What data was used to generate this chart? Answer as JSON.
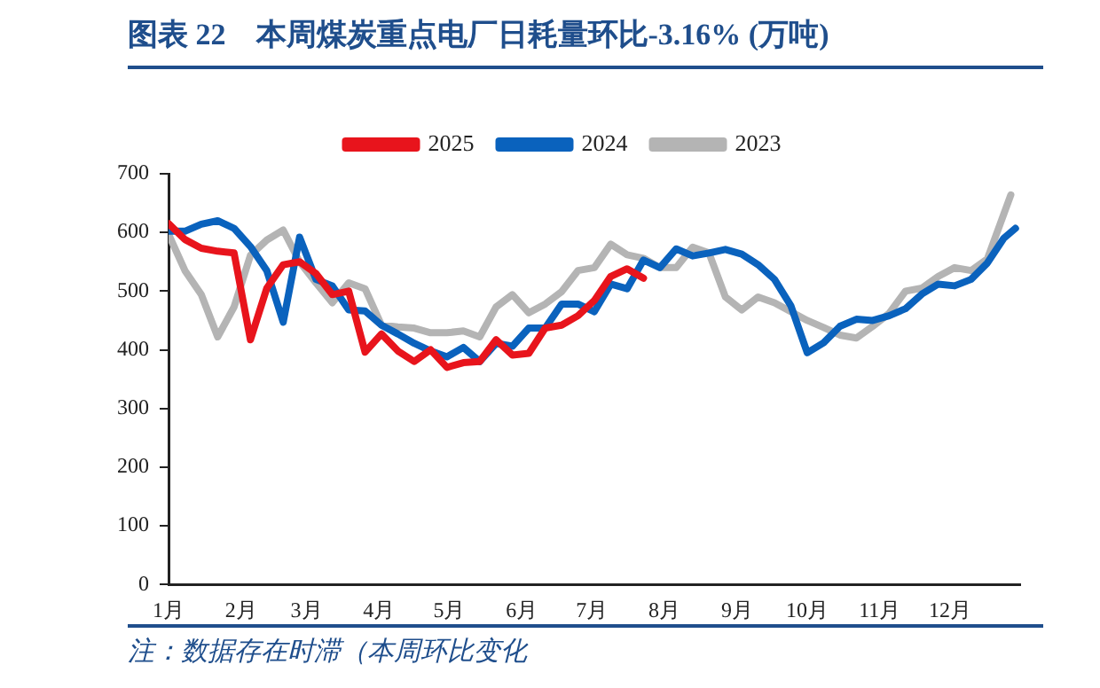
{
  "chart_data": {
    "type": "line",
    "title": "图表 22　本周煤炭重点电厂日耗量环比-3.16% (万吨)",
    "annotations": [
      "注：数据存在时滞（本周环比变化"
    ],
    "series": [
      {
        "name": "2025",
        "color": "#e8141c",
        "x": [
          "--01-01",
          "--01-08",
          "--01-15",
          "--01-22",
          "--01-29",
          "--02-05",
          "--02-12",
          "--02-19",
          "--02-26",
          "--03-05",
          "--03-12",
          "--03-19",
          "--03-26",
          "--04-02",
          "--04-09",
          "--04-16",
          "--04-23",
          "--04-30",
          "--05-07",
          "--05-14",
          "--05-21",
          "--05-28",
          "--06-04",
          "--06-11",
          "--06-18",
          "--06-25",
          "--07-02",
          "--07-09",
          "--07-16",
          "--07-23"
        ],
        "values": [
          615,
          588,
          573,
          568,
          565,
          417,
          505,
          545,
          550,
          530,
          494,
          500,
          396,
          427,
          398,
          380,
          400,
          370,
          378,
          380,
          417,
          391,
          394,
          437,
          442,
          458,
          484,
          525,
          538,
          522
        ]
      },
      {
        "name": "2024",
        "color": "#0a62bd",
        "x": [
          "--01-01",
          "--01-08",
          "--01-15",
          "--01-22",
          "--01-29",
          "--02-05",
          "--02-12",
          "--02-19",
          "--02-26",
          "--03-05",
          "--03-12",
          "--03-19",
          "--03-26",
          "--04-02",
          "--04-09",
          "--04-16",
          "--04-23",
          "--04-30",
          "--05-07",
          "--05-14",
          "--05-21",
          "--05-28",
          "--06-04",
          "--06-11",
          "--06-18",
          "--06-25",
          "--07-02",
          "--07-09",
          "--07-16",
          "--07-23",
          "--07-30",
          "--08-06",
          "--08-13",
          "--08-20",
          "--08-27",
          "--09-03",
          "--09-10",
          "--09-17",
          "--09-24",
          "--10-01",
          "--10-08",
          "--10-15",
          "--10-22",
          "--10-29",
          "--11-05",
          "--11-12",
          "--11-19",
          "--11-26",
          "--12-03",
          "--12-10",
          "--12-17",
          "--12-24",
          "--12-29"
        ],
        "values": [
          602,
          602,
          614,
          620,
          607,
          576,
          535,
          447,
          592,
          520,
          509,
          468,
          466,
          442,
          427,
          411,
          398,
          388,
          404,
          380,
          411,
          406,
          437,
          437,
          478,
          478,
          465,
          512,
          504,
          553,
          540,
          572,
          560,
          565,
          571,
          563,
          545,
          520,
          475,
          395,
          412,
          440,
          452,
          450,
          458,
          470,
          495,
          512,
          509,
          520,
          548,
          590,
          607
        ]
      },
      {
        "name": "2023",
        "color": "#b4b4b4",
        "x": [
          "--01-01",
          "--01-08",
          "--01-15",
          "--01-22",
          "--01-29",
          "--02-05",
          "--02-12",
          "--02-19",
          "--02-26",
          "--03-05",
          "--03-12",
          "--03-19",
          "--03-26",
          "--04-02",
          "--04-09",
          "--04-16",
          "--04-23",
          "--04-30",
          "--05-07",
          "--05-14",
          "--05-21",
          "--05-28",
          "--06-04",
          "--06-11",
          "--06-18",
          "--06-25",
          "--07-02",
          "--07-09",
          "--07-16",
          "--07-23",
          "--07-30",
          "--08-06",
          "--08-13",
          "--08-20",
          "--08-27",
          "--09-03",
          "--09-10",
          "--09-17",
          "--09-24",
          "--10-01",
          "--10-08",
          "--10-15",
          "--10-22",
          "--10-29",
          "--11-05",
          "--11-12",
          "--11-19",
          "--11-26",
          "--12-03",
          "--12-10",
          "--12-17",
          "--12-27"
        ],
        "values": [
          597,
          535,
          494,
          422,
          473,
          561,
          587,
          604,
          550,
          514,
          480,
          514,
          504,
          442,
          439,
          437,
          429,
          429,
          432,
          422,
          473,
          494,
          463,
          478,
          499,
          535,
          540,
          580,
          562,
          556,
          540,
          540,
          575,
          565,
          490,
          468,
          490,
          480,
          465,
          450,
          438,
          425,
          420,
          440,
          462,
          500,
          505,
          525,
          540,
          535,
          555,
          664
        ]
      }
    ],
    "xlim": [
      "--01-01",
      "--12-31"
    ],
    "xticks": [
      {
        "value": "--01-01",
        "label": "1月"
      },
      {
        "value": "--02-01",
        "label": "2月"
      },
      {
        "value": "--03-01",
        "label": "3月"
      },
      {
        "value": "--04-01",
        "label": "4月"
      },
      {
        "value": "--05-01",
        "label": "5月"
      },
      {
        "value": "--06-01",
        "label": "6月"
      },
      {
        "value": "--07-01",
        "label": "7月"
      },
      {
        "value": "--08-01",
        "label": "8月"
      },
      {
        "value": "--09-01",
        "label": "9月"
      },
      {
        "value": "--10-01",
        "label": "10月"
      },
      {
        "value": "--11-01",
        "label": "11月"
      },
      {
        "value": "--12-01",
        "label": "12月"
      }
    ],
    "ylim": [
      0,
      700
    ],
    "yticks": [
      0,
      100,
      200,
      300,
      400,
      500,
      600,
      700
    ],
    "grid": false,
    "legend": "top",
    "marker": "none",
    "line_style": "solid"
  }
}
